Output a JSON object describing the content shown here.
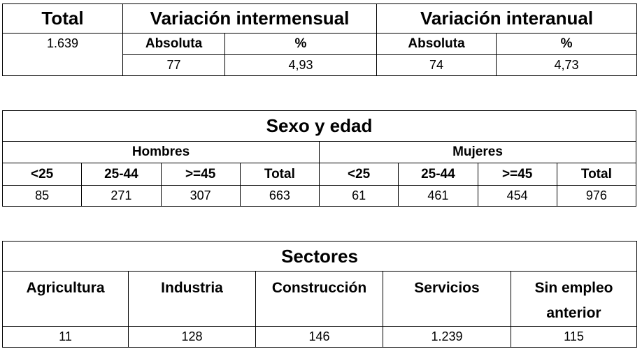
{
  "table1": {
    "header": {
      "total": "Total",
      "intermensual": "Variación intermensual",
      "interanual": "Variación interanual"
    },
    "subheader": [
      "Absoluta",
      "%",
      "Absoluta",
      "%"
    ],
    "total": "1.639",
    "values": [
      "77",
      "4,93",
      "74",
      "4,73"
    ]
  },
  "table2": {
    "title": "Sexo y edad",
    "groups": [
      "Hombres",
      "Mujeres"
    ],
    "columns": [
      "<25",
      "25-44",
      ">=45",
      "Total",
      "<25",
      "25-44",
      ">=45",
      "Total"
    ],
    "values": [
      "85",
      "271",
      "307",
      "663",
      "61",
      "461",
      "454",
      "976"
    ]
  },
  "table3": {
    "title": "Sectores",
    "columns": [
      "Agricultura",
      "Industria",
      "Construcción",
      "Servicios",
      "Sin empleo anterior"
    ],
    "values": [
      "11",
      "128",
      "146",
      "1.239",
      "115"
    ]
  }
}
